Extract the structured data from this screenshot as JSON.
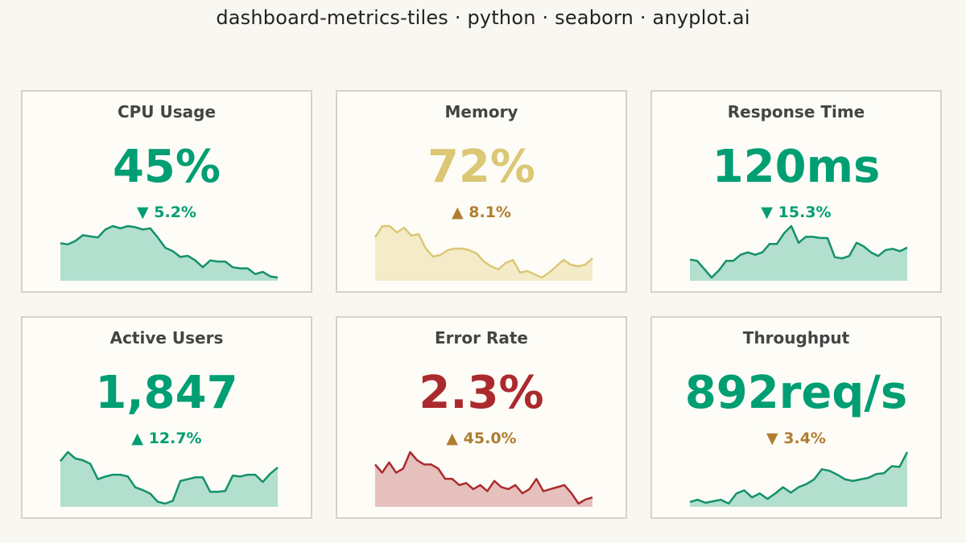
{
  "title": "dashboard-metrics-tiles · python · seaborn · anyplot.ai",
  "chart_data": {
    "type": "area",
    "tiles": [
      {
        "title": "CPU Usage",
        "value": "45%",
        "change": "5.2%",
        "direction": "down",
        "value_color": "#009e73",
        "change_color": "#009e73",
        "line_color": "#13916a",
        "fill_color": "#b3dfcf",
        "spark": [
          56,
          55,
          58,
          63,
          62,
          61,
          68,
          71,
          69,
          71,
          70,
          68,
          69,
          61,
          52,
          49,
          44,
          45,
          41,
          35,
          41,
          40,
          40,
          35,
          34,
          34,
          29,
          31,
          27,
          26
        ]
      },
      {
        "title": "Memory",
        "value": "72%",
        "change": "8.1%",
        "direction": "up",
        "value_color": "#dcc774",
        "change_color": "#b07d30",
        "line_color": "#dcc774",
        "fill_color": "#f4ebc8",
        "spark": [
          83,
          90,
          90,
          86,
          89,
          84,
          85,
          76,
          71,
          72,
          75,
          76,
          76,
          75,
          73,
          68,
          65,
          63,
          67,
          69,
          61,
          62,
          60,
          58,
          61,
          65,
          69,
          66,
          65,
          66,
          70
        ]
      },
      {
        "title": "Response Time",
        "value": "120ms",
        "change": "15.3%",
        "direction": "down",
        "value_color": "#009e73",
        "change_color": "#009e73",
        "line_color": "#13916a",
        "fill_color": "#b3dfcf",
        "spark": [
          120,
          119,
          112,
          105,
          111,
          119,
          119,
          124,
          126,
          124,
          126,
          133,
          133,
          142,
          148,
          134,
          139,
          139,
          138,
          138,
          122,
          121,
          123,
          134,
          131,
          126,
          123,
          128,
          129,
          127,
          130
        ]
      },
      {
        "title": "Active Users",
        "value": "1,847",
        "change": "12.7%",
        "direction": "up",
        "value_color": "#009e73",
        "change_color": "#009e73",
        "line_color": "#13916a",
        "fill_color": "#b3dfcf",
        "spark": [
          1840,
          1850,
          1843,
          1841,
          1837,
          1820,
          1823,
          1825,
          1825,
          1823,
          1811,
          1808,
          1804,
          1795,
          1793,
          1796,
          1818,
          1820,
          1822,
          1822,
          1806,
          1806,
          1807,
          1824,
          1823,
          1825,
          1825,
          1817,
          1826,
          1833
        ]
      },
      {
        "title": "Error Rate",
        "value": "2.3%",
        "change": "45.0%",
        "direction": "up",
        "value_color": "#ab2a2e",
        "change_color": "#b07d30",
        "line_color": "#ab2a2e",
        "fill_color": "#e6c0bd",
        "spark": [
          3.3,
          3.1,
          3.35,
          3.1,
          3.2,
          3.6,
          3.4,
          3.3,
          3.3,
          3.2,
          2.95,
          2.95,
          2.8,
          2.85,
          2.7,
          2.8,
          2.65,
          2.9,
          2.75,
          2.7,
          2.8,
          2.6,
          2.7,
          2.95,
          2.65,
          2.7,
          2.75,
          2.8,
          2.6,
          2.35,
          2.45,
          2.5
        ]
      },
      {
        "title": "Throughput",
        "value": "892req/s",
        "change": "3.4%",
        "direction": "down",
        "value_color": "#009e73",
        "change_color": "#b07d30",
        "line_color": "#13916a",
        "fill_color": "#b3dfcf",
        "spark": [
          811,
          814,
          810,
          812,
          814,
          809,
          822,
          826,
          817,
          822,
          815,
          822,
          830,
          823,
          830,
          834,
          840,
          853,
          851,
          846,
          840,
          838,
          840,
          842,
          847,
          848,
          857,
          856,
          875
        ]
      }
    ]
  }
}
